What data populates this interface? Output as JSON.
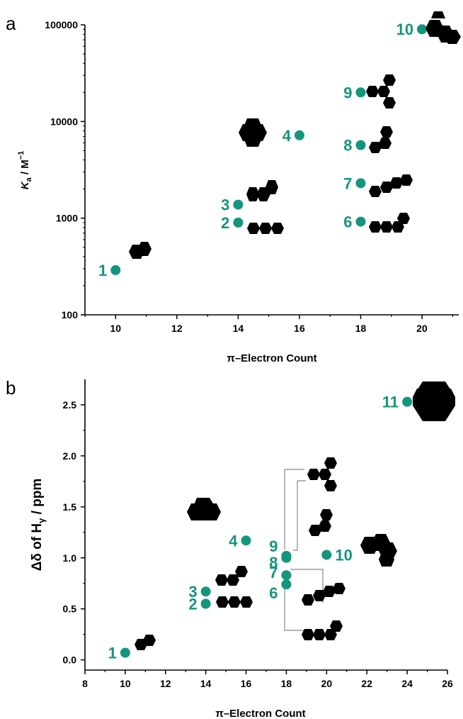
{
  "accent_color": "#13967b",
  "chart_data": [
    {
      "panel_letter": "a",
      "type": "scatter",
      "xlabel": "π–Electron Count",
      "ylabel_main": "K",
      "ylabel_sub": "a",
      "ylabel_rest": " / M",
      "ylabel_sup": "−1",
      "yscale": "log",
      "xlim": [
        9,
        21.2
      ],
      "ylim": [
        100,
        100000
      ],
      "x_ticks": [
        10,
        12,
        14,
        16,
        18,
        20
      ],
      "y_ticks": [
        100,
        1000,
        10000,
        100000
      ],
      "y_tick_labels": [
        "100",
        "1000",
        "10000",
        "100000"
      ],
      "points": [
        {
          "label": "1",
          "x": 10,
          "y": 290
        },
        {
          "label": "2",
          "x": 14,
          "y": 900
        },
        {
          "label": "3",
          "x": 14,
          "y": 1380
        },
        {
          "label": "4",
          "x": 16,
          "y": 7200
        },
        {
          "label": "6",
          "x": 18,
          "y": 920
        },
        {
          "label": "7",
          "x": 18,
          "y": 2300
        },
        {
          "label": "8",
          "x": 18,
          "y": 5700
        },
        {
          "label": "9",
          "x": 18,
          "y": 20000
        },
        {
          "label": "10",
          "x": 20,
          "y": 90000
        }
      ]
    },
    {
      "panel_letter": "b",
      "type": "scatter",
      "xlabel": "π–Electron Count",
      "ylabel_main": "Δδ  of H",
      "ylabel_sub": "γ",
      "ylabel_rest": " / ppm",
      "xlim": [
        8,
        26
      ],
      "ylim": [
        -0.1,
        2.75
      ],
      "x_ticks": [
        8,
        10,
        12,
        14,
        16,
        18,
        20,
        22,
        24,
        26
      ],
      "y_ticks": [
        0.0,
        0.5,
        1.0,
        1.5,
        2.0,
        2.5
      ],
      "y_tick_labels": [
        "0.0",
        "0.5",
        "1.0",
        "1.5",
        "2.0",
        "2.5"
      ],
      "points": [
        {
          "label": "1",
          "x": 10,
          "y": 0.07
        },
        {
          "label": "2",
          "x": 14,
          "y": 0.55
        },
        {
          "label": "3",
          "x": 14,
          "y": 0.67
        },
        {
          "label": "4",
          "x": 16,
          "y": 1.17
        },
        {
          "label": "6",
          "x": 18,
          "y": 0.74
        },
        {
          "label": "7",
          "x": 18,
          "y": 0.83
        },
        {
          "label": "8",
          "x": 18,
          "y": 1.0
        },
        {
          "label": "9",
          "x": 18,
          "y": 1.02
        },
        {
          "label": "10",
          "x": 20,
          "y": 1.03
        },
        {
          "label": "11",
          "x": 24,
          "y": 2.53
        }
      ]
    }
  ]
}
